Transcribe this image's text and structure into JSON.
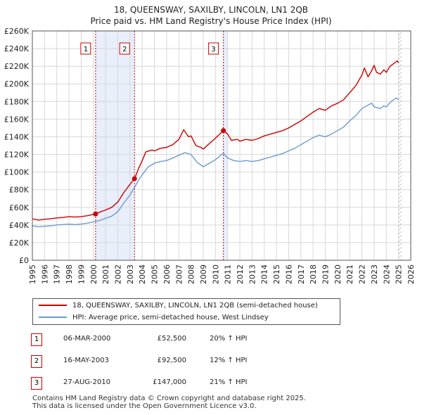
{
  "title": {
    "line1": "18, QUEENSWAY, SAXILBY, LINCOLN, LN1 2QB",
    "line2": "Price paid vs. HM Land Registry's House Price Index (HPI)"
  },
  "colors": {
    "property": "#cc0000",
    "hpi": "#6a9bd1",
    "shade": "#e8eefa",
    "grid": "#d8d8d8",
    "future_hatch": "#999999"
  },
  "chart_data": {
    "type": "line",
    "title": "Price paid vs. HM Land Registry's House Price Index (HPI)",
    "xlabel": "",
    "ylabel": "",
    "xlim": [
      1995,
      2026
    ],
    "ylim": [
      0,
      260000
    ],
    "x_ticks": [
      1995,
      1996,
      1997,
      1998,
      1999,
      2000,
      2001,
      2002,
      2003,
      2004,
      2005,
      2006,
      2007,
      2008,
      2009,
      2010,
      2011,
      2012,
      2013,
      2014,
      2015,
      2016,
      2017,
      2018,
      2019,
      2020,
      2021,
      2022,
      2023,
      2024,
      2025,
      2026
    ],
    "y_ticks": [
      {
        "value": 0,
        "label": "£0"
      },
      {
        "value": 20000,
        "label": "£20K"
      },
      {
        "value": 40000,
        "label": "£40K"
      },
      {
        "value": 60000,
        "label": "£60K"
      },
      {
        "value": 80000,
        "label": "£80K"
      },
      {
        "value": 100000,
        "label": "£100K"
      },
      {
        "value": 120000,
        "label": "£120K"
      },
      {
        "value": 140000,
        "label": "£140K"
      },
      {
        "value": 160000,
        "label": "£160K"
      },
      {
        "value": 180000,
        "label": "£180K"
      },
      {
        "value": 200000,
        "label": "£200K"
      },
      {
        "value": 220000,
        "label": "£220K"
      },
      {
        "value": 240000,
        "label": "£240K"
      },
      {
        "value": 260000,
        "label": "£260K"
      }
    ],
    "grid": true,
    "shaded_ranges": [
      [
        2000.18,
        2003.37
      ],
      [
        2010.65,
        2011.0
      ]
    ],
    "future_from": 2025.0,
    "series": [
      {
        "name": "18, QUEENSWAY, SAXILBY, LINCOLN, LN1 2QB (semi-detached house)",
        "color": "#cc0000",
        "points": [
          [
            1995,
            47000
          ],
          [
            1995.5,
            45500
          ],
          [
            1996,
            46500
          ],
          [
            1996.5,
            47000
          ],
          [
            1997,
            48000
          ],
          [
            1997.5,
            48500
          ],
          [
            1998,
            49500
          ],
          [
            1998.5,
            49000
          ],
          [
            1999,
            49500
          ],
          [
            1999.5,
            50500
          ],
          [
            2000,
            52000
          ],
          [
            2000.18,
            52500
          ],
          [
            2000.5,
            54500
          ],
          [
            2001,
            57000
          ],
          [
            2001.5,
            60000
          ],
          [
            2002,
            66000
          ],
          [
            2002.5,
            77000
          ],
          [
            2003,
            86000
          ],
          [
            2003.37,
            92500
          ],
          [
            2003.7,
            104000
          ],
          [
            2004,
            113000
          ],
          [
            2004.3,
            123000
          ],
          [
            2004.8,
            125000
          ],
          [
            2005,
            124000
          ],
          [
            2005.5,
            127000
          ],
          [
            2006,
            128000
          ],
          [
            2006.5,
            131000
          ],
          [
            2007,
            137000
          ],
          [
            2007.4,
            148000
          ],
          [
            2007.8,
            140000
          ],
          [
            2008,
            141000
          ],
          [
            2008.4,
            130000
          ],
          [
            2008.8,
            128000
          ],
          [
            2009,
            126000
          ],
          [
            2009.4,
            131000
          ],
          [
            2009.8,
            136000
          ],
          [
            2010.2,
            141000
          ],
          [
            2010.65,
            147000
          ],
          [
            2011,
            143000
          ],
          [
            2011.3,
            136000
          ],
          [
            2011.8,
            137000
          ],
          [
            2012,
            135000
          ],
          [
            2012.5,
            137000
          ],
          [
            2013,
            136000
          ],
          [
            2013.5,
            138000
          ],
          [
            2014,
            141000
          ],
          [
            2014.5,
            143000
          ],
          [
            2015,
            145000
          ],
          [
            2015.5,
            147000
          ],
          [
            2016,
            150000
          ],
          [
            2016.5,
            154000
          ],
          [
            2017,
            158000
          ],
          [
            2017.5,
            163000
          ],
          [
            2018,
            168000
          ],
          [
            2018.5,
            172000
          ],
          [
            2019,
            170000
          ],
          [
            2019.5,
            175000
          ],
          [
            2020,
            178000
          ],
          [
            2020.5,
            182000
          ],
          [
            2021,
            190000
          ],
          [
            2021.5,
            198000
          ],
          [
            2022,
            210000
          ],
          [
            2022.2,
            218000
          ],
          [
            2022.5,
            208000
          ],
          [
            2022.8,
            215000
          ],
          [
            2023,
            221000
          ],
          [
            2023.2,
            213000
          ],
          [
            2023.5,
            211000
          ],
          [
            2023.8,
            216000
          ],
          [
            2024,
            213000
          ],
          [
            2024.3,
            220000
          ],
          [
            2024.6,
            223000
          ],
          [
            2024.9,
            226000
          ],
          [
            2025.0,
            224000
          ]
        ]
      },
      {
        "name": "HPI: Average price, semi-detached house, West Lindsey",
        "color": "#6a9bd1",
        "points": [
          [
            1995,
            39000
          ],
          [
            1995.5,
            38000
          ],
          [
            1996,
            38500
          ],
          [
            1996.5,
            39000
          ],
          [
            1997,
            40000
          ],
          [
            1997.5,
            40500
          ],
          [
            1998,
            41000
          ],
          [
            1998.5,
            40500
          ],
          [
            1999,
            41000
          ],
          [
            1999.5,
            42000
          ],
          [
            2000,
            43500
          ],
          [
            2000.5,
            45000
          ],
          [
            2001,
            47500
          ],
          [
            2001.5,
            50000
          ],
          [
            2002,
            55000
          ],
          [
            2002.5,
            65000
          ],
          [
            2003,
            74000
          ],
          [
            2003.37,
            82500
          ],
          [
            2003.7,
            91000
          ],
          [
            2004,
            97000
          ],
          [
            2004.5,
            106000
          ],
          [
            2005,
            110000
          ],
          [
            2005.5,
            112000
          ],
          [
            2006,
            113000
          ],
          [
            2006.5,
            116000
          ],
          [
            2007,
            119000
          ],
          [
            2007.5,
            122000
          ],
          [
            2008,
            120000
          ],
          [
            2008.5,
            111000
          ],
          [
            2009,
            106000
          ],
          [
            2009.5,
            110000
          ],
          [
            2010,
            114000
          ],
          [
            2010.65,
            121500
          ],
          [
            2011,
            116000
          ],
          [
            2011.5,
            113000
          ],
          [
            2012,
            112000
          ],
          [
            2012.5,
            113000
          ],
          [
            2013,
            112000
          ],
          [
            2013.5,
            113000
          ],
          [
            2014,
            115000
          ],
          [
            2014.5,
            117000
          ],
          [
            2015,
            119000
          ],
          [
            2015.5,
            121000
          ],
          [
            2016,
            124000
          ],
          [
            2016.5,
            127000
          ],
          [
            2017,
            131000
          ],
          [
            2017.5,
            135000
          ],
          [
            2018,
            139000
          ],
          [
            2018.5,
            142000
          ],
          [
            2019,
            140000
          ],
          [
            2019.5,
            143000
          ],
          [
            2020,
            147000
          ],
          [
            2020.5,
            151000
          ],
          [
            2021,
            158000
          ],
          [
            2021.5,
            164000
          ],
          [
            2022,
            172000
          ],
          [
            2022.5,
            176000
          ],
          [
            2022.8,
            178000
          ],
          [
            2023,
            174000
          ],
          [
            2023.5,
            172000
          ],
          [
            2023.8,
            175000
          ],
          [
            2024,
            174000
          ],
          [
            2024.4,
            180000
          ],
          [
            2024.8,
            184000
          ],
          [
            2025.0,
            182000
          ]
        ]
      }
    ],
    "annotations": [
      {
        "label": "1",
        "x": 2000.18,
        "y": 52500
      },
      {
        "label": "2",
        "x": 2003.37,
        "y": 92500
      },
      {
        "label": "3",
        "x": 2010.65,
        "y": 147000
      }
    ]
  },
  "legend": {
    "property_label": "18, QUEENSWAY, SAXILBY, LINCOLN, LN1 2QB (semi-detached house)",
    "hpi_label": "HPI: Average price, semi-detached house, West Lindsey"
  },
  "sales": [
    {
      "num": "1",
      "date": "06-MAR-2000",
      "price": "£52,500",
      "hpi": "20% ↑ HPI"
    },
    {
      "num": "2",
      "date": "16-MAY-2003",
      "price": "£92,500",
      "hpi": "12% ↑ HPI"
    },
    {
      "num": "3",
      "date": "27-AUG-2010",
      "price": "£147,000",
      "hpi": "21% ↑ HPI"
    }
  ],
  "footer": {
    "line1": "Contains HM Land Registry data © Crown copyright and database right 2025.",
    "line2": "This data is licensed under the Open Government Licence v3.0."
  }
}
